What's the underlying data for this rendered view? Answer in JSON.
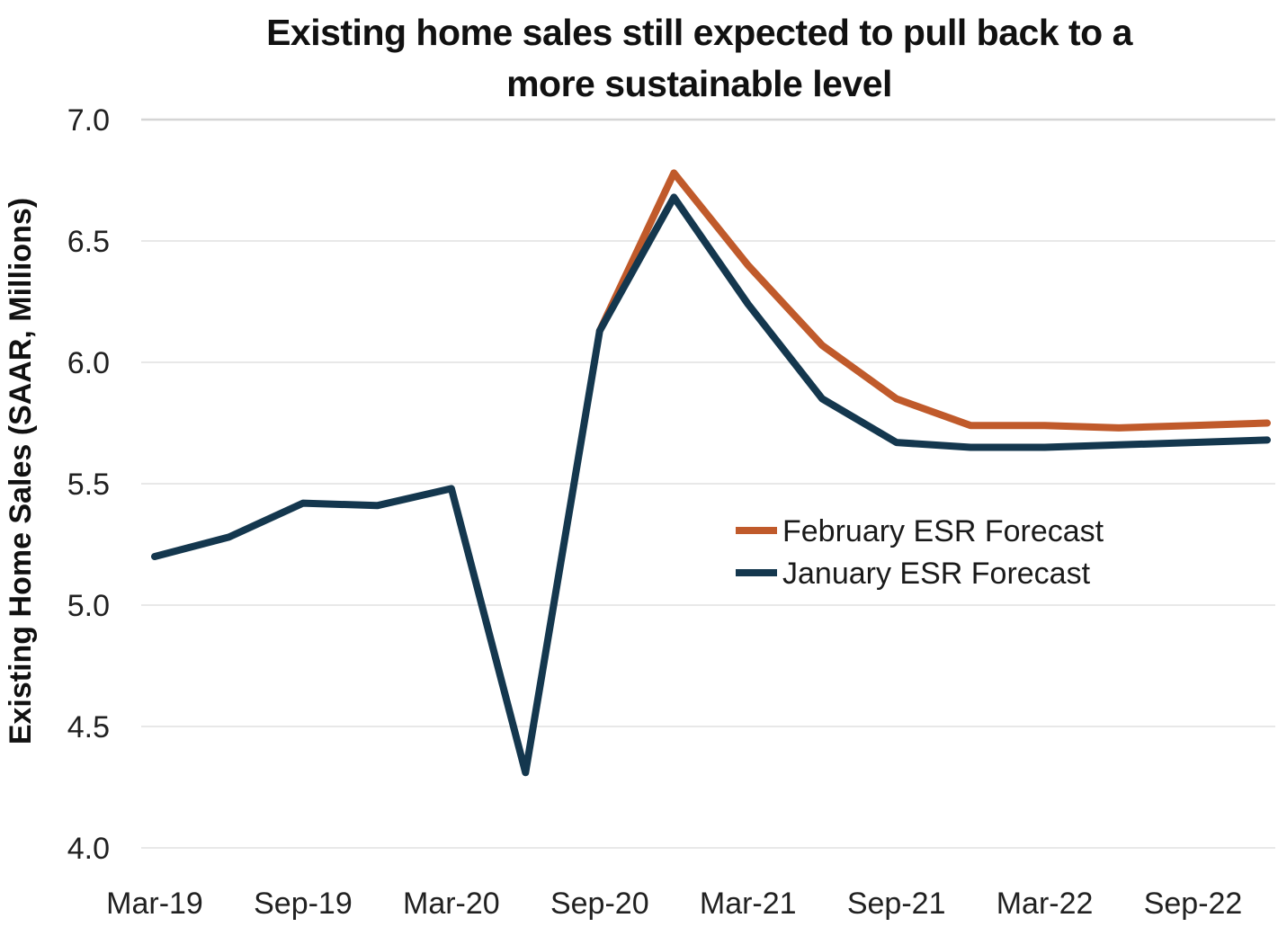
{
  "title": {
    "line1": "Existing home sales still expected to pull back to a",
    "line2": "more sustainable level"
  },
  "y_axis": {
    "label": "Existing Home Sales (SAAR, Millions)",
    "ticks": [
      "7.0",
      "6.5",
      "6.0",
      "5.5",
      "5.0",
      "4.5",
      "4.0"
    ]
  },
  "x_axis": {
    "tick_labels": [
      "Mar-19",
      "Sep-19",
      "Mar-20",
      "Sep-20",
      "Mar-21",
      "Sep-21",
      "Mar-22",
      "Sep-22"
    ]
  },
  "legend": {
    "items": [
      {
        "label": "February ESR Forecast",
        "color": "#C05A2B"
      },
      {
        "label": "January ESR Forecast",
        "color": "#14374E"
      }
    ]
  },
  "chart_data": {
    "type": "line",
    "title": "Existing home sales still expected to pull back to a more sustainable level",
    "ylabel": "Existing Home Sales (SAAR, Millions)",
    "xlabel": "",
    "ylim": [
      4.0,
      7.0
    ],
    "y_tick_step": 0.5,
    "grid": "horizontal",
    "legend_position": "center-right",
    "x": [
      "Mar-19",
      "Jun-19",
      "Sep-19",
      "Dec-19",
      "Mar-20",
      "Jun-20",
      "Sep-20",
      "Dec-20",
      "Mar-21",
      "Jun-21",
      "Sep-21",
      "Dec-21",
      "Mar-22",
      "Jun-22",
      "Sep-22",
      "Dec-22"
    ],
    "series": [
      {
        "name": "February ESR Forecast",
        "color": "#C05A2B",
        "values": [
          null,
          null,
          null,
          null,
          null,
          null,
          6.13,
          6.78,
          6.4,
          6.07,
          5.85,
          5.74,
          5.74,
          5.73,
          5.74,
          5.75
        ]
      },
      {
        "name": "January ESR Forecast",
        "color": "#14374E",
        "values": [
          5.2,
          5.28,
          5.42,
          5.41,
          5.48,
          4.31,
          6.13,
          6.68,
          6.24,
          5.85,
          5.67,
          5.65,
          5.65,
          5.66,
          5.67,
          5.68
        ]
      }
    ]
  }
}
